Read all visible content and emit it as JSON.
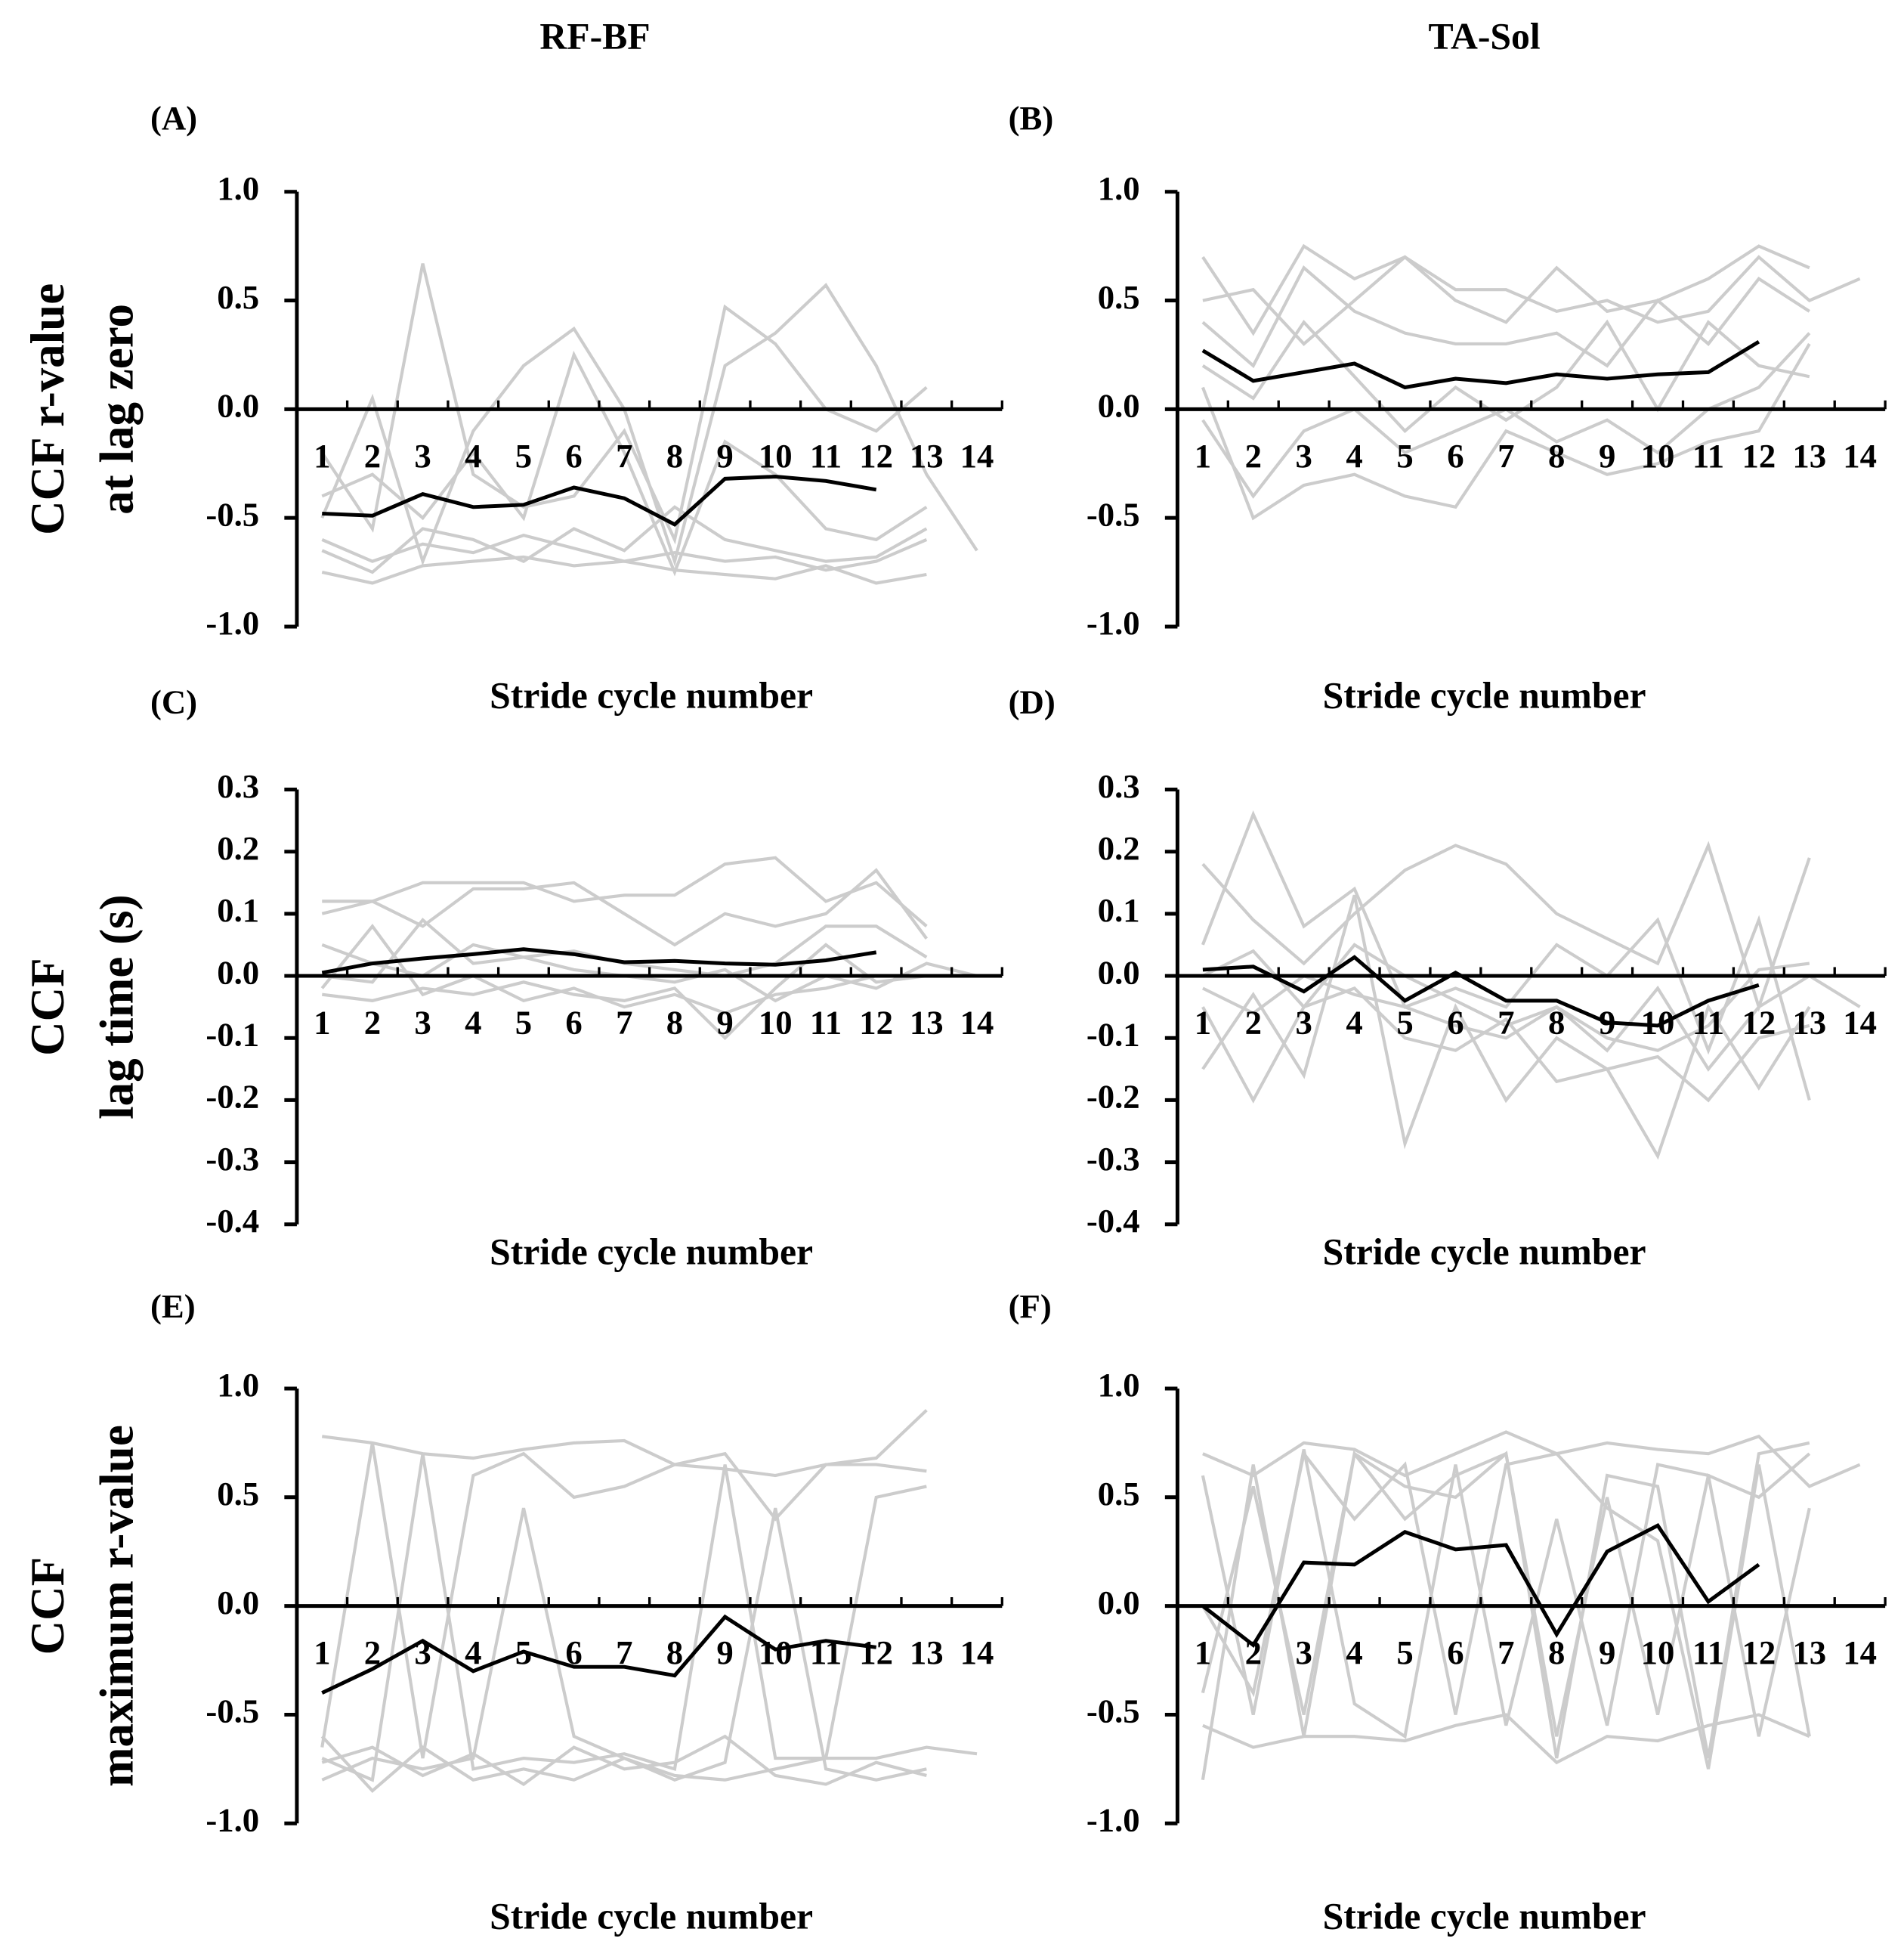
{
  "chart_data": [
    {
      "type": "line",
      "title": "RF-BF",
      "panel": "(A)",
      "ylabel": [
        "CCF r-value",
        "at lag zero"
      ],
      "xlabel": "Stride cycle number",
      "categories": [
        "1",
        "2",
        "3",
        "4",
        "5",
        "6",
        "7",
        "8",
        "9",
        "10",
        "11",
        "12",
        "13",
        "14"
      ],
      "ylim": [
        -1,
        1
      ],
      "yticks": [
        {
          "value": -1,
          "label": "-1.0"
        },
        {
          "value": -0.5,
          "label": "-0.5"
        },
        {
          "value": 0,
          "label": "0.0"
        },
        {
          "value": 0.5,
          "label": "0.5"
        },
        {
          "value": 1,
          "label": "1.0"
        }
      ],
      "series": [
        {
          "color": "#cccccc",
          "values": [
            -0.75,
            -0.8,
            -0.72,
            -0.7,
            -0.68,
            -0.72,
            -0.7,
            -0.74,
            -0.76,
            -0.78,
            -0.72,
            -0.8,
            -0.76,
            null
          ]
        },
        {
          "color": "#cccccc",
          "values": [
            -0.6,
            -0.7,
            -0.62,
            -0.66,
            -0.58,
            -0.64,
            -0.7,
            -0.66,
            -0.7,
            -0.68,
            -0.74,
            -0.7,
            -0.6,
            null
          ]
        },
        {
          "color": "#cccccc",
          "values": [
            -0.2,
            -0.55,
            0.67,
            -0.3,
            -0.45,
            -0.4,
            -0.1,
            -0.6,
            0.47,
            0.3,
            0.0,
            -0.1,
            0.1,
            null
          ]
        },
        {
          "color": "#cccccc",
          "values": [
            -0.5,
            0.05,
            -0.7,
            -0.1,
            0.2,
            0.37,
            0.0,
            -0.7,
            0.2,
            0.35,
            0.57,
            0.2,
            -0.3,
            -0.65
          ]
        },
        {
          "color": "#cccccc",
          "values": [
            -0.65,
            -0.75,
            -0.55,
            -0.6,
            -0.7,
            -0.55,
            -0.65,
            -0.45,
            -0.6,
            -0.65,
            -0.7,
            -0.68,
            -0.55,
            null
          ]
        },
        {
          "color": "#cccccc",
          "values": [
            -0.4,
            -0.3,
            -0.5,
            -0.2,
            -0.5,
            0.25,
            -0.2,
            -0.75,
            -0.15,
            -0.3,
            -0.55,
            -0.6,
            -0.45,
            null
          ]
        },
        {
          "color": "#000000",
          "values": [
            -0.48,
            -0.49,
            -0.39,
            -0.45,
            -0.44,
            -0.36,
            -0.41,
            -0.53,
            -0.32,
            -0.31,
            -0.33,
            -0.37,
            null,
            null
          ]
        }
      ]
    },
    {
      "type": "line",
      "title": "TA-Sol",
      "panel": "(B)",
      "xlabel": "Stride cycle number",
      "categories": [
        "1",
        "2",
        "3",
        "4",
        "5",
        "6",
        "7",
        "8",
        "9",
        "10",
        "11",
        "12",
        "13",
        "14"
      ],
      "ylim": [
        -1,
        1
      ],
      "yticks": [
        {
          "value": -1,
          "label": "-1.0"
        },
        {
          "value": -0.5,
          "label": "-0.5"
        },
        {
          "value": 0,
          "label": "0.0"
        },
        {
          "value": 0.5,
          "label": "0.5"
        },
        {
          "value": 1,
          "label": "1.0"
        }
      ],
      "series": [
        {
          "color": "#cccccc",
          "values": [
            0.7,
            0.35,
            0.75,
            0.6,
            0.7,
            0.5,
            0.4,
            0.65,
            0.45,
            0.5,
            0.6,
            0.75,
            0.65,
            null
          ]
        },
        {
          "color": "#cccccc",
          "values": [
            0.5,
            0.55,
            0.3,
            0.5,
            0.7,
            0.55,
            0.55,
            0.45,
            0.5,
            0.4,
            0.45,
            0.7,
            0.5,
            0.6
          ]
        },
        {
          "color": "#cccccc",
          "values": [
            0.1,
            -0.5,
            -0.35,
            -0.3,
            -0.4,
            -0.45,
            -0.1,
            -0.2,
            -0.3,
            -0.25,
            -0.15,
            -0.1,
            0.3,
            null
          ]
        },
        {
          "color": "#cccccc",
          "values": [
            -0.05,
            -0.4,
            -0.1,
            0.0,
            -0.2,
            -0.1,
            0.0,
            -0.15,
            -0.05,
            -0.2,
            0.0,
            0.1,
            0.35,
            null
          ]
        },
        {
          "color": "#cccccc",
          "values": [
            0.4,
            0.2,
            0.65,
            0.45,
            0.35,
            0.3,
            0.3,
            0.35,
            0.2,
            0.5,
            0.3,
            0.6,
            0.45,
            null
          ]
        },
        {
          "color": "#cccccc",
          "values": [
            0.2,
            0.05,
            0.4,
            0.15,
            -0.1,
            0.1,
            -0.05,
            0.1,
            0.4,
            0.0,
            0.4,
            0.2,
            0.15,
            null
          ]
        },
        {
          "color": "#000000",
          "values": [
            0.27,
            0.13,
            0.17,
            0.21,
            0.1,
            0.14,
            0.12,
            0.16,
            0.14,
            0.16,
            0.17,
            0.31,
            null,
            null
          ]
        }
      ]
    },
    {
      "type": "line",
      "panel": "(C)",
      "ylabel": [
        "CCF",
        "lag time (s)"
      ],
      "xlabel": "Stride cycle number",
      "categories": [
        "1",
        "2",
        "3",
        "4",
        "5",
        "6",
        "7",
        "8",
        "9",
        "10",
        "11",
        "12",
        "13",
        "14"
      ],
      "ylim": [
        -0.4,
        0.3
      ],
      "yticks": [
        -0.4,
        -0.3,
        -0.2,
        -0.1,
        {
          "value": 0,
          "label": "0.0"
        },
        0.1,
        0.2,
        0.3
      ],
      "series": [
        {
          "color": "#cccccc",
          "values": [
            0.12,
            0.12,
            0.15,
            0.15,
            0.15,
            0.12,
            0.13,
            0.13,
            0.18,
            0.19,
            0.12,
            0.15,
            0.08,
            null
          ]
        },
        {
          "color": "#cccccc",
          "values": [
            0.1,
            0.12,
            0.08,
            0.14,
            0.14,
            0.15,
            0.1,
            0.05,
            0.1,
            0.08,
            0.1,
            0.17,
            0.06,
            null
          ]
        },
        {
          "color": "#cccccc",
          "values": [
            -0.02,
            0.08,
            -0.03,
            0.0,
            -0.04,
            -0.02,
            -0.05,
            -0.03,
            -0.06,
            -0.03,
            -0.02,
            0.0,
            0.0,
            null
          ]
        },
        {
          "color": "#cccccc",
          "values": [
            0.0,
            -0.01,
            0.09,
            0.02,
            0.03,
            0.01,
            0.0,
            -0.01,
            0.01,
            -0.04,
            0.0,
            -0.02,
            0.02,
            0.0
          ]
        },
        {
          "color": "#cccccc",
          "values": [
            -0.03,
            -0.04,
            -0.02,
            -0.03,
            -0.01,
            -0.03,
            -0.04,
            -0.02,
            -0.1,
            -0.02,
            0.05,
            -0.01,
            0.0,
            null
          ]
        },
        {
          "color": "#cccccc",
          "values": [
            0.05,
            0.02,
            0.0,
            0.05,
            0.03,
            0.04,
            0.02,
            0.01,
            0.0,
            0.02,
            0.08,
            0.08,
            0.03,
            null
          ]
        },
        {
          "color": "#000000",
          "values": [
            0.005,
            0.02,
            0.028,
            0.035,
            0.043,
            0.035,
            0.022,
            0.024,
            0.02,
            0.018,
            0.025,
            0.038,
            null,
            null
          ]
        }
      ]
    },
    {
      "type": "line",
      "panel": "(D)",
      "xlabel": "Stride cycle number",
      "categories": [
        "1",
        "2",
        "3",
        "4",
        "5",
        "6",
        "7",
        "8",
        "9",
        "10",
        "11",
        "12",
        "13",
        "14"
      ],
      "ylim": [
        -0.4,
        0.3
      ],
      "yticks": [
        -0.4,
        -0.3,
        -0.2,
        -0.1,
        {
          "value": 0,
          "label": "0.0"
        },
        0.1,
        0.2,
        0.3
      ],
      "series": [
        {
          "color": "#cccccc",
          "values": [
            0.18,
            0.09,
            0.02,
            0.1,
            0.17,
            0.21,
            0.18,
            0.1,
            0.06,
            0.02,
            0.21,
            -0.05,
            0.19,
            null
          ]
        },
        {
          "color": "#cccccc",
          "values": [
            0.05,
            0.26,
            0.08,
            0.14,
            -0.05,
            -0.02,
            -0.05,
            0.05,
            0.0,
            0.09,
            -0.12,
            0.09,
            -0.2,
            null
          ]
        },
        {
          "color": "#cccccc",
          "values": [
            -0.15,
            -0.03,
            -0.16,
            0.13,
            -0.27,
            -0.05,
            -0.2,
            -0.1,
            -0.15,
            -0.29,
            -0.05,
            -0.18,
            -0.05,
            null
          ]
        },
        {
          "color": "#cccccc",
          "values": [
            -0.05,
            -0.2,
            -0.05,
            -0.02,
            -0.1,
            -0.12,
            -0.07,
            -0.17,
            -0.15,
            -0.13,
            -0.2,
            -0.1,
            -0.08,
            null
          ]
        },
        {
          "color": "#cccccc",
          "values": [
            0.0,
            0.04,
            -0.05,
            0.05,
            0.0,
            -0.04,
            -0.08,
            -0.05,
            -0.12,
            -0.02,
            -0.15,
            -0.05,
            0.0,
            -0.05
          ]
        },
        {
          "color": "#cccccc",
          "values": [
            -0.02,
            -0.06,
            0.0,
            -0.03,
            -0.05,
            -0.08,
            -0.1,
            -0.05,
            -0.1,
            -0.12,
            -0.08,
            0.01,
            0.02,
            null
          ]
        },
        {
          "color": "#000000",
          "values": [
            0.01,
            0.015,
            -0.025,
            0.03,
            -0.04,
            0.005,
            -0.04,
            -0.04,
            -0.075,
            -0.08,
            -0.04,
            -0.015,
            null,
            null
          ]
        }
      ]
    },
    {
      "type": "line",
      "panel": "(E)",
      "ylabel": [
        "CCF",
        "maximum r-value"
      ],
      "xlabel": "Stride cycle number",
      "categories": [
        "1",
        "2",
        "3",
        "4",
        "5",
        "6",
        "7",
        "8",
        "9",
        "10",
        "11",
        "12",
        "13",
        "14"
      ],
      "ylim": [
        -1,
        1
      ],
      "yticks": [
        {
          "value": -1,
          "label": "-1.0"
        },
        {
          "value": -0.5,
          "label": "-0.5"
        },
        {
          "value": 0,
          "label": "0.0"
        },
        {
          "value": 0.5,
          "label": "0.5"
        },
        {
          "value": 1,
          "label": "1.0"
        }
      ],
      "series": [
        {
          "color": "#cccccc",
          "values": [
            0.78,
            0.75,
            0.7,
            0.68,
            0.72,
            0.75,
            0.76,
            0.65,
            0.63,
            0.6,
            0.65,
            0.68,
            0.9,
            null
          ]
        },
        {
          "color": "#cccccc",
          "values": [
            -0.65,
            0.75,
            -0.7,
            0.6,
            0.7,
            0.5,
            0.55,
            0.65,
            0.7,
            0.4,
            0.65,
            0.65,
            0.62,
            null
          ]
        },
        {
          "color": "#cccccc",
          "values": [
            -0.7,
            -0.8,
            0.7,
            -0.75,
            -0.7,
            -0.72,
            -0.68,
            -0.75,
            0.65,
            -0.7,
            -0.7,
            0.5,
            0.55,
            null
          ]
        },
        {
          "color": "#cccccc",
          "values": [
            -0.8,
            -0.7,
            -0.75,
            -0.7,
            0.45,
            -0.6,
            -0.7,
            -0.8,
            -0.72,
            0.45,
            -0.75,
            -0.8,
            -0.75,
            null
          ]
        },
        {
          "color": "#cccccc",
          "values": [
            -0.6,
            -0.85,
            -0.65,
            -0.8,
            -0.75,
            -0.8,
            -0.7,
            -0.78,
            -0.8,
            -0.75,
            -0.7,
            -0.7,
            -0.65,
            -0.68
          ]
        },
        {
          "color": "#cccccc",
          "values": [
            -0.72,
            -0.65,
            -0.78,
            -0.68,
            -0.82,
            -0.65,
            -0.75,
            -0.72,
            -0.6,
            -0.78,
            -0.82,
            -0.72,
            -0.78,
            null
          ]
        },
        {
          "color": "#000000",
          "values": [
            -0.4,
            -0.29,
            -0.16,
            -0.3,
            -0.21,
            -0.28,
            -0.28,
            -0.32,
            -0.05,
            -0.2,
            -0.16,
            -0.19,
            null,
            null
          ]
        }
      ]
    },
    {
      "type": "line",
      "panel": "(F)",
      "xlabel": "Stride cycle number",
      "categories": [
        "1",
        "2",
        "3",
        "4",
        "5",
        "6",
        "7",
        "8",
        "9",
        "10",
        "11",
        "12",
        "13",
        "14"
      ],
      "ylim": [
        -1,
        1
      ],
      "yticks": [
        {
          "value": -1,
          "label": "-1.0"
        },
        {
          "value": -0.5,
          "label": "-0.5"
        },
        {
          "value": 0,
          "label": "0.0"
        },
        {
          "value": 0.5,
          "label": "0.5"
        },
        {
          "value": 1,
          "label": "1.0"
        }
      ],
      "series": [
        {
          "color": "#cccccc",
          "values": [
            0.7,
            0.6,
            0.75,
            0.72,
            0.6,
            0.7,
            0.8,
            0.7,
            0.75,
            0.72,
            0.7,
            0.78,
            0.55,
            0.65
          ]
        },
        {
          "color": "#cccccc",
          "values": [
            -0.8,
            0.65,
            -0.6,
            0.7,
            0.55,
            0.5,
            0.7,
            -0.7,
            0.6,
            0.55,
            -0.7,
            0.7,
            0.75,
            null
          ]
        },
        {
          "color": "#cccccc",
          "values": [
            0.6,
            -0.5,
            0.72,
            -0.45,
            -0.6,
            0.65,
            -0.55,
            0.4,
            -0.55,
            0.65,
            0.6,
            -0.6,
            0.45,
            null
          ]
        },
        {
          "color": "#cccccc",
          "values": [
            -0.55,
            -0.65,
            -0.6,
            -0.6,
            -0.62,
            -0.55,
            -0.5,
            -0.72,
            -0.6,
            -0.62,
            -0.55,
            -0.5,
            -0.6,
            null
          ]
        },
        {
          "color": "#cccccc",
          "values": [
            -0.4,
            0.55,
            -0.5,
            0.7,
            0.4,
            0.6,
            0.7,
            -0.6,
            0.5,
            -0.5,
            0.6,
            0.5,
            0.7,
            null
          ]
        },
        {
          "color": "#cccccc",
          "values": [
            0.0,
            -0.4,
            0.7,
            0.4,
            0.65,
            -0.5,
            0.65,
            0.7,
            0.45,
            0.3,
            -0.75,
            0.65,
            -0.6,
            null
          ]
        },
        {
          "color": "#000000",
          "values": [
            0.0,
            -0.18,
            0.2,
            0.19,
            0.34,
            0.26,
            0.28,
            -0.13,
            0.25,
            0.37,
            0.02,
            0.19,
            null,
            null
          ]
        }
      ]
    }
  ]
}
